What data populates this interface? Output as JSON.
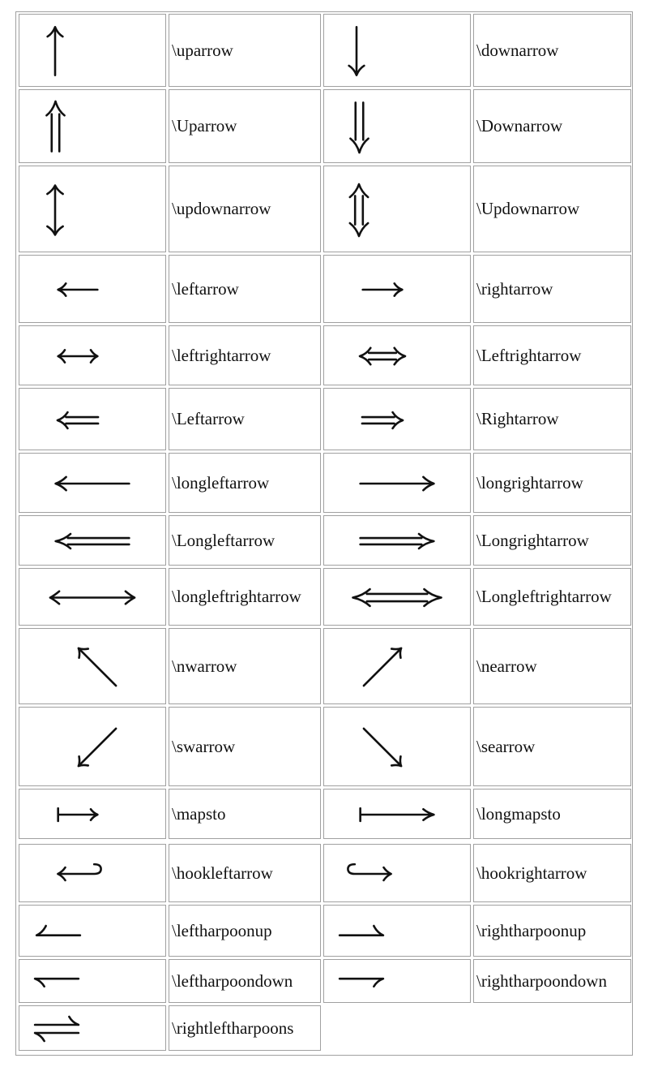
{
  "table": {
    "rows": [
      [
        {
          "icon": "uparrow-icon",
          "name": "\\uparrow"
        },
        {
          "icon": "downarrow-icon",
          "name": "\\downarrow"
        }
      ],
      [
        {
          "icon": "double-uparrow-icon",
          "name": "\\Uparrow"
        },
        {
          "icon": "double-downarrow-icon",
          "name": "\\Downarrow"
        }
      ],
      [
        {
          "icon": "updownarrow-icon",
          "name": "\\updownarrow"
        },
        {
          "icon": "double-updownarrow-icon",
          "name": "\\Updownarrow"
        }
      ],
      [
        {
          "icon": "leftarrow-icon",
          "name": "\\leftarrow"
        },
        {
          "icon": "rightarrow-icon",
          "name": "\\rightarrow"
        }
      ],
      [
        {
          "icon": "leftrightarrow-icon",
          "name": "\\leftrightarrow"
        },
        {
          "icon": "double-leftrightarrow-icon",
          "name": "\\Leftrightarrow"
        }
      ],
      [
        {
          "icon": "double-leftarrow-icon",
          "name": "\\Leftarrow"
        },
        {
          "icon": "double-rightarrow-icon",
          "name": "\\Rightarrow"
        }
      ],
      [
        {
          "icon": "longleftarrow-icon",
          "name": "\\longleftarrow"
        },
        {
          "icon": "longrightarrow-icon",
          "name": "\\longrightarrow"
        }
      ],
      [
        {
          "icon": "double-longleftarrow-icon",
          "name": "\\Longleftarrow"
        },
        {
          "icon": "double-longrightarrow-icon",
          "name": "\\Longrightarrow"
        }
      ],
      [
        {
          "icon": "longleftrightarrow-icon",
          "name": "\\longleftrightarrow"
        },
        {
          "icon": "double-longleftrightarrow-icon",
          "name": "\\Longleftrightarrow"
        }
      ],
      [
        {
          "icon": "nwarrow-icon",
          "name": "\\nwarrow"
        },
        {
          "icon": "nearrow-icon",
          "name": "\\nearrow"
        }
      ],
      [
        {
          "icon": "swarrow-icon",
          "name": "\\swarrow"
        },
        {
          "icon": "searrow-icon",
          "name": "\\searrow"
        }
      ],
      [
        {
          "icon": "mapsto-icon",
          "name": "\\mapsto"
        },
        {
          "icon": "longmapsto-icon",
          "name": "\\longmapsto"
        }
      ],
      [
        {
          "icon": "hookleftarrow-icon",
          "name": "\\hookleftarrow"
        },
        {
          "icon": "hookrightarrow-icon",
          "name": "\\hookrightarrow"
        }
      ],
      [
        {
          "icon": "leftharpoonup-icon",
          "name": "\\leftharpoonup"
        },
        {
          "icon": "rightharpoonup-icon",
          "name": "\\rightharpoonup"
        }
      ],
      [
        {
          "icon": "leftharpoondown-icon",
          "name": "\\leftharpoondown"
        },
        {
          "icon": "rightharpoondown-icon",
          "name": "\\rightharpoondown"
        }
      ],
      [
        {
          "icon": "rightleftharpoons-icon",
          "name": "\\rightleftharpoons"
        },
        null
      ]
    ]
  }
}
